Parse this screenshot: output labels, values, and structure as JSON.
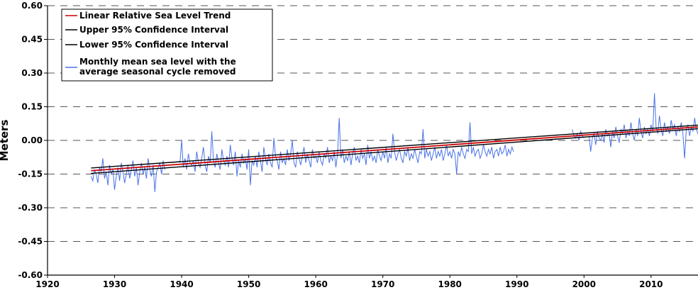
{
  "chart_data": {
    "type": "line",
    "ylabel": "Meters",
    "xlabel": "",
    "title": "",
    "xlim": [
      1920,
      2017
    ],
    "ylim": [
      -0.6,
      0.6
    ],
    "x_ticks": [
      1920,
      1930,
      1940,
      1950,
      1960,
      1970,
      1980,
      1990,
      2000,
      2010
    ],
    "y_ticks": [
      "0.60",
      "0.45",
      "0.30",
      "0.15",
      "0.00",
      "-0.15",
      "-0.30",
      "-0.45",
      "-0.60"
    ],
    "grid": "horizontal dashed",
    "legend_position": "top-left",
    "series": [
      {
        "name": "Linear Relative Sea Level Trend",
        "color": "#cc0000",
        "x": [
          1926.5,
          2017
        ],
        "y": [
          -0.135,
          0.06
        ]
      },
      {
        "name": "Upper 95% Confidence Interval",
        "color": "#000000",
        "x": [
          1926.5,
          2017
        ],
        "y": [
          -0.123,
          0.068
        ]
      },
      {
        "name": "Lower 95% Confidence Interval",
        "color": "#000000",
        "x": [
          1926.5,
          2017
        ],
        "y": [
          -0.147,
          0.052
        ]
      },
      {
        "name": "Monthly mean sea level with the average seasonal cycle removed",
        "color": "#4a72e8",
        "segments": [
          {
            "start": 1926.5,
            "step_years": 0.25,
            "y": [
              -0.16,
              -0.18,
              -0.13,
              -0.15,
              -0.19,
              -0.12,
              -0.14,
              -0.08,
              -0.17,
              -0.14,
              -0.2,
              -0.11,
              -0.15,
              -0.13,
              -0.22,
              -0.16,
              -0.12,
              -0.18,
              -0.1,
              -0.14,
              -0.19,
              -0.15,
              -0.11,
              -0.17,
              -0.13,
              -0.09,
              -0.16,
              -0.12,
              -0.2,
              -0.14,
              -0.1,
              -0.15,
              -0.12,
              -0.17,
              -0.08,
              -0.13,
              -0.16,
              -0.11,
              -0.23,
              -0.14,
              -0.12,
              -0.1,
              -0.15,
              -0.09,
              -0.13
            ]
          },
          {
            "start": 1939.75,
            "step_years": 0.25,
            "y": [
              -0.1,
              0.0,
              -0.12,
              -0.08,
              -0.13,
              -0.06,
              -0.1,
              -0.11,
              -0.09,
              -0.14,
              -0.05,
              -0.1,
              -0.12,
              -0.08,
              -0.03,
              -0.11,
              -0.14,
              -0.07,
              -0.1,
              0.04,
              -0.09,
              -0.12,
              -0.06,
              -0.1,
              -0.13,
              -0.04,
              -0.09,
              -0.11,
              -0.07,
              -0.12,
              -0.02,
              -0.08,
              -0.11,
              -0.05,
              -0.16,
              -0.09,
              -0.12,
              -0.06,
              -0.1,
              -0.08,
              -0.13,
              -0.04,
              -0.2,
              -0.09,
              -0.11,
              -0.07,
              -0.12,
              -0.05,
              -0.09,
              -0.14,
              -0.03,
              -0.08,
              -0.11,
              -0.06,
              -0.1,
              -0.12,
              0.01,
              -0.07,
              -0.09,
              -0.13,
              -0.05,
              -0.1,
              -0.08,
              -0.11,
              -0.04,
              -0.09,
              -0.06,
              0.0,
              -0.1,
              -0.12,
              -0.05,
              -0.08,
              -0.11,
              -0.07,
              -0.03,
              -0.1,
              -0.06,
              -0.09,
              -0.12,
              -0.04,
              -0.08,
              -0.07,
              -0.1,
              -0.05,
              -0.09,
              -0.11,
              -0.06,
              -0.08,
              -0.03,
              -0.1,
              -0.07,
              -0.09,
              -0.05,
              -0.12,
              -0.06,
              0.1,
              -0.08,
              -0.04,
              -0.1,
              -0.07,
              -0.09,
              -0.05,
              -0.11,
              -0.06,
              -0.03,
              -0.09,
              -0.07,
              -0.1,
              -0.04,
              -0.08,
              -0.06,
              -0.11,
              -0.02,
              -0.08,
              -0.05,
              -0.09,
              -0.07,
              -0.1,
              -0.04,
              -0.07,
              -0.09,
              -0.05,
              -0.08,
              -0.03,
              -0.1,
              -0.06,
              -0.08,
              0.03,
              -0.05,
              -0.09,
              -0.06,
              -0.04,
              -0.08,
              -0.1,
              -0.05,
              -0.07,
              -0.03,
              -0.09,
              -0.06,
              -0.08,
              -0.04,
              -0.07,
              -0.1,
              -0.05,
              -0.06,
              0.05,
              -0.08,
              -0.04,
              -0.07,
              -0.05,
              -0.09,
              -0.06,
              -0.03,
              -0.08,
              -0.05,
              -0.07,
              -0.04,
              -0.09,
              -0.06,
              -0.02,
              -0.07,
              -0.05,
              -0.08,
              -0.04,
              -0.06,
              -0.15,
              -0.05,
              -0.07,
              -0.03,
              -0.06,
              -0.08,
              -0.04,
              -0.05,
              0.08,
              -0.06,
              -0.03,
              -0.07,
              -0.05,
              -0.04,
              -0.08,
              -0.06,
              -0.02,
              -0.05,
              -0.07,
              -0.04,
              -0.06,
              -0.03,
              -0.08,
              -0.05,
              -0.04,
              -0.07,
              -0.03,
              -0.06,
              -0.05,
              -0.02,
              -0.07,
              -0.04,
              -0.06,
              -0.03,
              -0.05
            ]
          },
          {
            "start": 1998.25,
            "step_years": 0.25,
            "y": [
              0.05,
              0.02,
              0.01,
              0.03,
              0.0,
              0.04,
              0.02,
              0.01
            ]
          },
          {
            "start": 2000.75,
            "step_years": 0.25,
            "y": [
              0.02,
              -0.05,
              0.01,
              0.03,
              -0.02,
              0.04,
              0.01,
              0.0,
              0.03,
              -0.01,
              0.05,
              0.02,
              0.03,
              -0.03,
              0.04,
              0.01,
              0.06,
              0.02,
              -0.01,
              0.05,
              0.03,
              0.07,
              0.01,
              0.04,
              0.02,
              0.08,
              0.03,
              0.0,
              0.05,
              0.02,
              0.1,
              0.04,
              0.01,
              0.06,
              0.03,
              0.05,
              0.02,
              0.07,
              0.04,
              0.21,
              0.06,
              0.03,
              0.11,
              0.05,
              0.02,
              0.08,
              0.04,
              0.06,
              0.03,
              0.09,
              0.05,
              0.07,
              0.02,
              0.06,
              0.04,
              0.08,
              0.03,
              -0.08,
              0.05,
              0.07,
              0.02,
              0.06,
              0.04,
              0.1,
              0.05,
              0.03,
              0.06
            ]
          }
        ]
      }
    ]
  }
}
